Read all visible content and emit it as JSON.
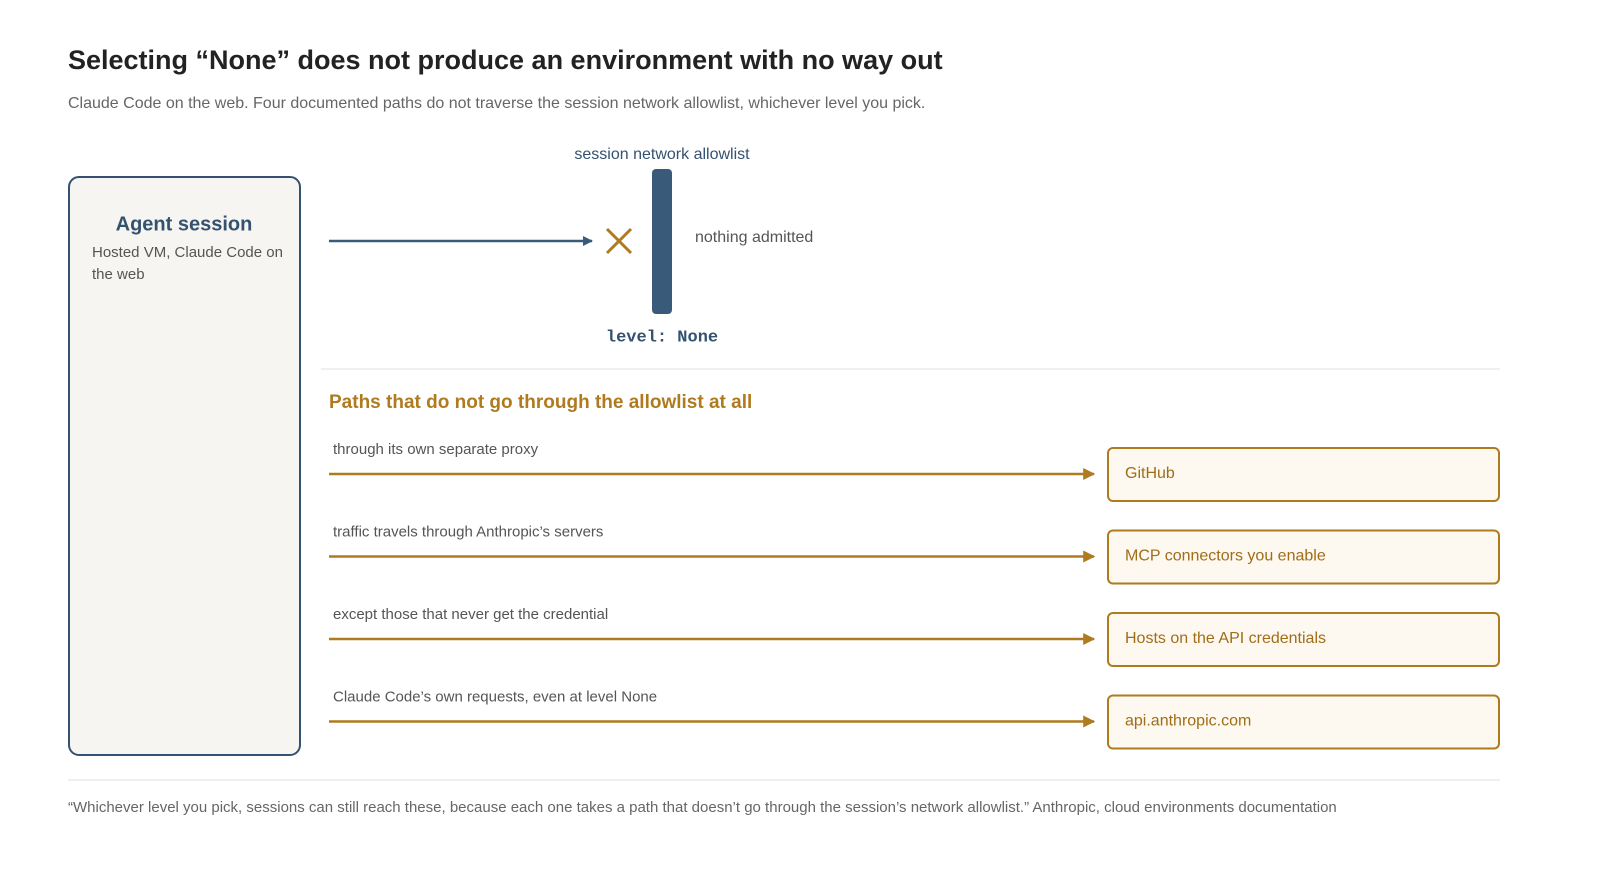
{
  "header": {
    "title": "Selecting “None” does not produce an environment with no way out",
    "subtitle": "Claude Code on the web. Four documented paths do not traverse the session network allowlist, whichever level you pick."
  },
  "session": {
    "title": "Agent session",
    "description": "Hosted VM, Claude Code on the web"
  },
  "allowlist": {
    "label": "session network allowlist",
    "level": "level: None",
    "status": "nothing admitted"
  },
  "bypass": {
    "heading": "Paths that do not go through the allowlist at all",
    "paths": [
      {
        "label": "through its own separate proxy",
        "target": "GitHub"
      },
      {
        "label": "traffic travels through Anthropic’s servers",
        "target": "MCP connectors you enable"
      },
      {
        "label": "except those that never get the credential",
        "target": "Hosts on the API credentials"
      },
      {
        "label": "Claude Code’s own requests, even at level None",
        "target": "api.anthropic.com"
      }
    ]
  },
  "footer": {
    "quote": "“Whichever level you pick, sessions can still reach these, because each one takes a path that doesn’t go through the session’s network allowlist.” Anthropic, cloud environments documentation"
  }
}
